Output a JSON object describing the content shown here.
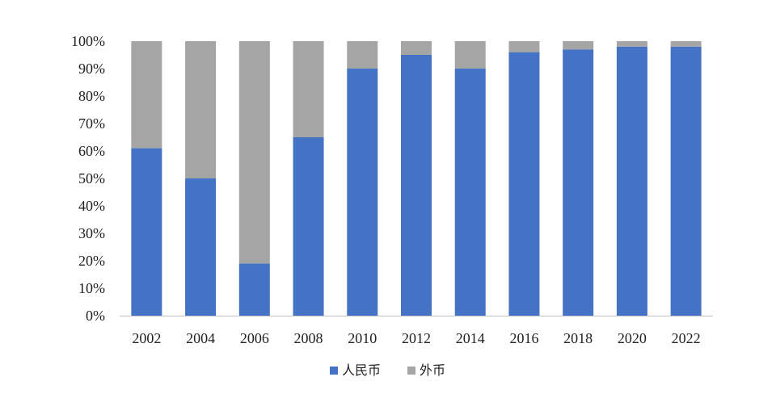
{
  "chart_data": {
    "type": "bar",
    "stacked": true,
    "categories": [
      "2002",
      "2004",
      "2006",
      "2008",
      "2010",
      "2012",
      "2014",
      "2016",
      "2018",
      "2020",
      "2022"
    ],
    "series": [
      {
        "name": "人民币",
        "color": "#4472C4",
        "values": [
          61,
          50,
          19,
          65,
          90,
          95,
          90,
          96,
          97,
          98,
          98
        ]
      },
      {
        "name": "外币",
        "color": "#A5A5A5",
        "values": [
          39,
          50,
          81,
          35,
          10,
          5,
          10,
          4,
          3,
          2,
          2
        ]
      }
    ],
    "ylim": [
      0,
      100
    ],
    "yticks": [
      "0%",
      "10%",
      "20%",
      "30%",
      "40%",
      "50%",
      "60%",
      "70%",
      "80%",
      "90%",
      "100%"
    ],
    "title": "",
    "xlabel": "",
    "ylabel": "",
    "grid": false,
    "legend_position": "bottom-center"
  }
}
